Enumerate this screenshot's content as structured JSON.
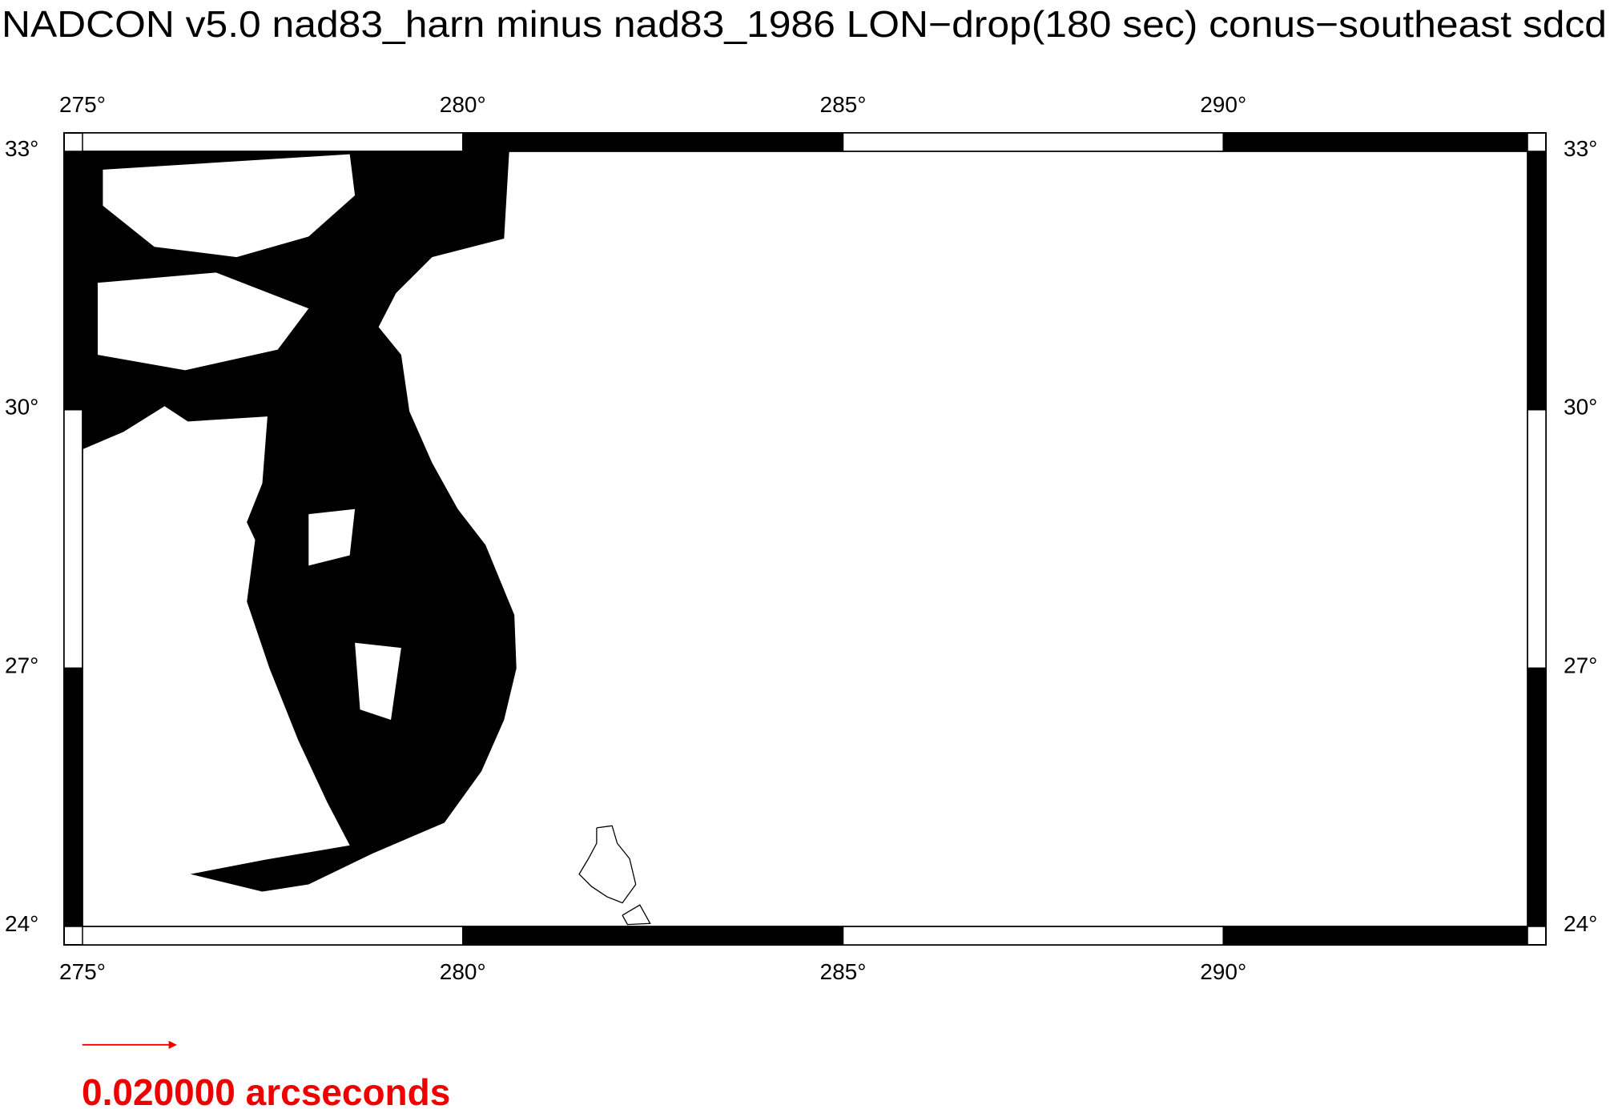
{
  "title": "NADCON v5.0 nad83_harn minus nad83_1986 LON−drop(180 sec) conus−southeast sdcd",
  "map": {
    "xlim": [
      275,
      294
    ],
    "ylim": [
      24,
      33
    ],
    "xticks": [
      {
        "value": 275,
        "label": "275°"
      },
      {
        "value": 280,
        "label": "280°"
      },
      {
        "value": 285,
        "label": "285°"
      },
      {
        "value": 290,
        "label": "290°"
      }
    ],
    "yticks": [
      {
        "value": 24,
        "label": "24°"
      },
      {
        "value": 27,
        "label": "27°"
      },
      {
        "value": 30,
        "label": "30°"
      },
      {
        "value": 33,
        "label": "33°"
      }
    ]
  },
  "scale_label": "0.020000 arcseconds"
}
